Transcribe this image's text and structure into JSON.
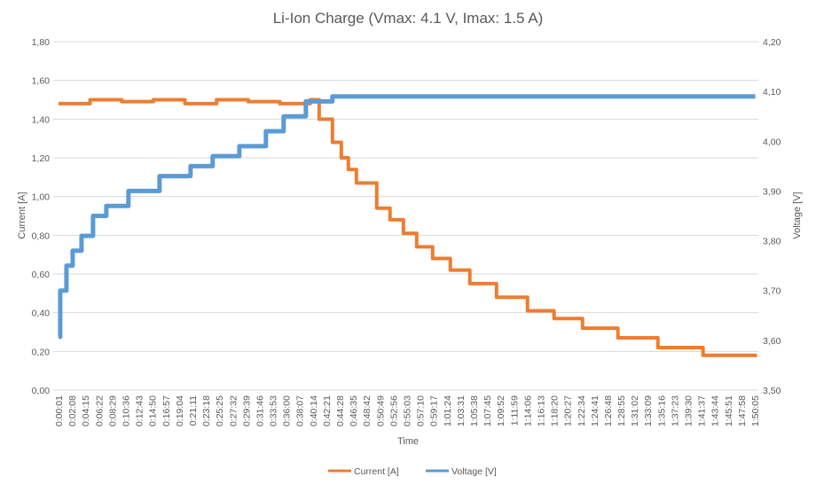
{
  "chart_data": {
    "type": "line",
    "title": "Li-Ion Charge (Vmax: 4.1 V, Imax: 1.5 A)",
    "xlabel": "Time",
    "ylabel": "Current [A]",
    "y2label": "Voltage [V]",
    "ylim": [
      0,
      1.8
    ],
    "y2lim": [
      3.5,
      4.2
    ],
    "yticks": [
      "0,00",
      "0,20",
      "0,40",
      "0,60",
      "0,80",
      "1,00",
      "1,20",
      "1,40",
      "1,60",
      "1,80"
    ],
    "y2ticks": [
      "3,50",
      "3,60",
      "3,70",
      "3,80",
      "3,90",
      "4,00",
      "4,10",
      "4,20"
    ],
    "xticks": [
      "0:00:01",
      "0:02:08",
      "0:04:15",
      "0:06:22",
      "0:08:29",
      "0:10:36",
      "0:12:43",
      "0:14:50",
      "0:16:57",
      "0:19:04",
      "0:21:11",
      "0:23:18",
      "0:25:25",
      "0:27:32",
      "0:29:39",
      "0:31:46",
      "0:33:53",
      "0:36:00",
      "0:38:07",
      "0:40:14",
      "0:42:21",
      "0:44:28",
      "0:46:35",
      "0:48:42",
      "0:50:49",
      "0:52:56",
      "0:55:03",
      "0:57:10",
      "0:59:17",
      "1:01:24",
      "1:03:31",
      "1:05:38",
      "1:07:45",
      "1:09:52",
      "1:11:59",
      "1:14:06",
      "1:16:13",
      "1:18:20",
      "1:20:27",
      "1:22:34",
      "1:24:41",
      "1:26:48",
      "1:28:55",
      "1:31:02",
      "1:33:09",
      "1:35:16",
      "1:37:23",
      "1:39:30",
      "1:41:37",
      "1:43:44",
      "1:45:51",
      "1:47:58",
      "1:50:05"
    ],
    "grid": true,
    "legend": "bottom",
    "series": [
      {
        "name": "Current [A]",
        "axis": "left",
        "color": "#ED7D31",
        "x": [
          "0:00:01",
          "0:05:00",
          "0:10:00",
          "0:15:00",
          "0:20:00",
          "0:25:00",
          "0:30:00",
          "0:35:00",
          "0:39:48",
          "0:41:13",
          "0:43:19",
          "0:44:43",
          "0:45:50",
          "0:47:06",
          "0:50:19",
          "0:52:25",
          "0:54:32",
          "0:56:38",
          "0:59:09",
          "1:01:57",
          "1:05:02",
          "1:09:15",
          "1:14:09",
          "1:18:21",
          "1:22:51",
          "1:28:27",
          "1:34:46",
          "1:41:54",
          "1:50:10"
        ],
        "values": [
          1.48,
          1.5,
          1.49,
          1.5,
          1.48,
          1.5,
          1.49,
          1.48,
          1.5,
          1.4,
          1.28,
          1.2,
          1.14,
          1.07,
          0.94,
          0.88,
          0.81,
          0.74,
          0.68,
          0.62,
          0.55,
          0.48,
          0.41,
          0.37,
          0.32,
          0.27,
          0.22,
          0.18,
          0.17
        ]
      },
      {
        "name": "Voltage [V]",
        "axis": "right",
        "color": "#5B9BD5",
        "x": [
          "0:00:01",
          "0:00:17",
          "0:01:16",
          "0:02:15",
          "0:03:39",
          "0:05:28",
          "0:07:34",
          "0:11:04",
          "0:15:59",
          "0:20:53",
          "0:24:23",
          "0:28:36",
          "0:32:48",
          "0:35:36",
          "0:39:07",
          "0:43:19",
          "1:50:10"
        ],
        "values": [
          3.607,
          3.7,
          3.75,
          3.78,
          3.81,
          3.85,
          3.87,
          3.9,
          3.93,
          3.95,
          3.97,
          3.99,
          4.02,
          4.05,
          4.08,
          4.09,
          4.09
        ]
      }
    ]
  }
}
